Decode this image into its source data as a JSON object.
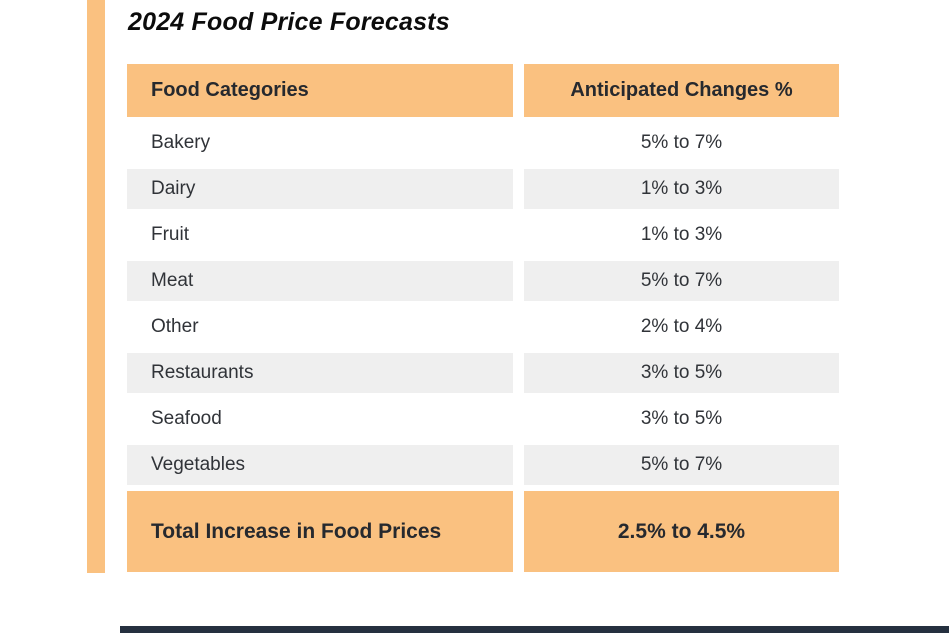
{
  "title": "2024 Food Price Forecasts",
  "table": {
    "columns": [
      "Food Categories",
      "Anticipated Changes %"
    ],
    "rows": [
      {
        "category": "Bakery",
        "change": "5% to 7%"
      },
      {
        "category": "Dairy",
        "change": "1% to 3%"
      },
      {
        "category": "Fruit",
        "change": "1% to 3%"
      },
      {
        "category": "Meat",
        "change": "5% to 7%"
      },
      {
        "category": "Other",
        "change": "2% to 4%"
      },
      {
        "category": "Restaurants",
        "change": "3% to 5%"
      },
      {
        "category": "Seafood",
        "change": "3% to 5%"
      },
      {
        "category": "Vegetables",
        "change": "5% to 7%"
      }
    ],
    "total": {
      "label": "Total Increase in Food Prices",
      "value": "2.5% to 4.5%"
    }
  },
  "chart_data": {
    "type": "table",
    "title": "2024 Food Price Forecasts",
    "columns": [
      "Food Categories",
      "Anticipated Changes %"
    ],
    "rows": [
      [
        "Bakery",
        "5% to 7%"
      ],
      [
        "Dairy",
        "1% to 3%"
      ],
      [
        "Fruit",
        "1% to 3%"
      ],
      [
        "Meat",
        "5% to 7%"
      ],
      [
        "Other",
        "2% to 4%"
      ],
      [
        "Restaurants",
        "3% to 5%"
      ],
      [
        "Seafood",
        "3% to 5%"
      ],
      [
        "Vegetables",
        "5% to 7%"
      ]
    ],
    "total_row": [
      "Total Increase in Food Prices",
      "2.5% to 4.5%"
    ],
    "layout_hints": {
      "header_fill": "#FAC180",
      "alt_row_fill": "#EFEFEF",
      "total_row_fill": "#FAC180",
      "value_alignment": "center"
    }
  },
  "colors": {
    "accent_orange": "#FAC180",
    "row_alt_gray": "#EFEFEF",
    "header_text": "#26292E",
    "body_text": "#303338",
    "bottom_bar": "#25303F"
  }
}
